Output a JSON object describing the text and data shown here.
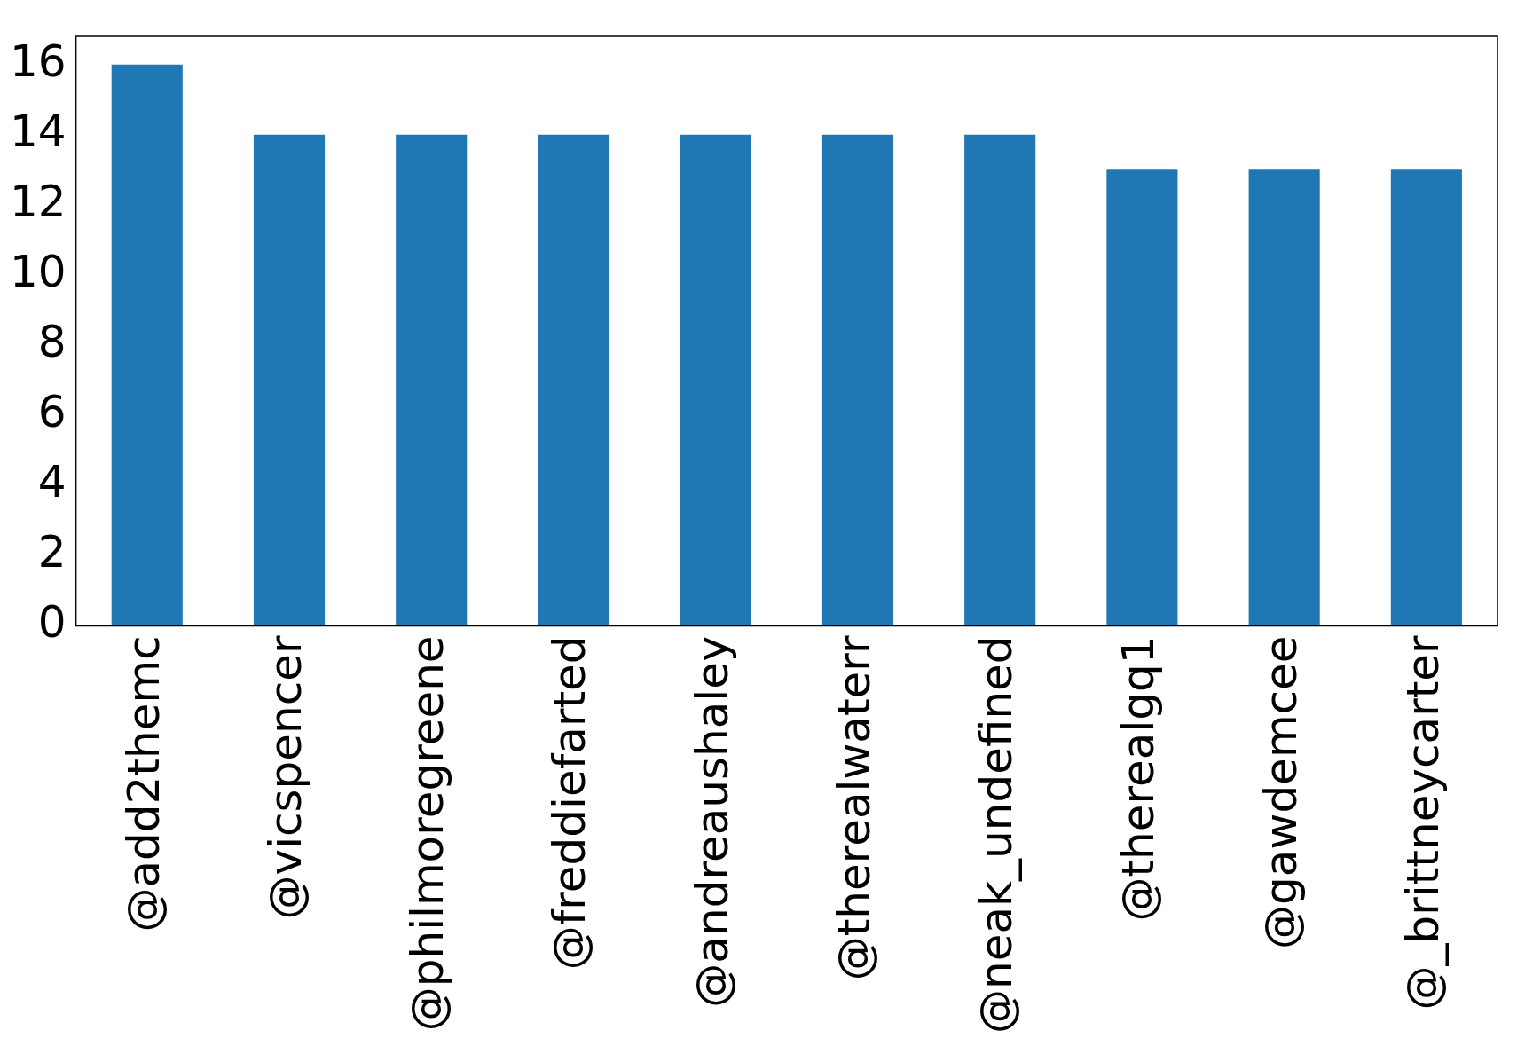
{
  "chart_data": {
    "type": "bar",
    "categories": [
      "@add2themc",
      "@vicspencer",
      "@philmoregreene",
      "@freddiefarted",
      "@andreaushaley",
      "@therealwaterr",
      "@neak_undefined",
      "@therealgq1",
      "@gawdemcee",
      "@_brittneycarter"
    ],
    "values": [
      16,
      14,
      14,
      14,
      14,
      14,
      14,
      13,
      13,
      13
    ],
    "color": "#1f77b4",
    "ylim": [
      0,
      16.8
    ],
    "yticks": [
      0,
      2,
      4,
      6,
      8,
      10,
      12,
      14,
      16
    ],
    "grid": false,
    "legend": false
  }
}
